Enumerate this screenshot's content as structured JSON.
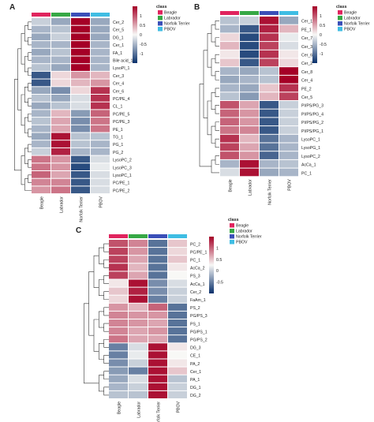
{
  "chart_data": [
    {
      "type": "heatmap",
      "panel_label": "A",
      "columns": [
        "Beagle",
        "Labrador",
        "Norfolk Terrier",
        "PBOV"
      ],
      "class_title": "class",
      "legend": [
        "Beagle",
        "Labrador",
        "Norfolk Terrier",
        "PBOV"
      ],
      "class_colors": [
        "#e0245e",
        "#36a845",
        "#3a4fb8",
        "#3fbde3"
      ],
      "scale_ticks": [
        "1",
        "0.5",
        "0",
        "-0.5",
        "-1"
      ],
      "scale_range": [
        -1.5,
        1.5
      ],
      "rows": [
        "Cer_2",
        "Cer_5",
        "DG_1",
        "Cer_1",
        "FA_1",
        "Bile acid_1",
        "LysoPI_1",
        "Cer_3",
        "Cer_4",
        "Cer_6",
        "PC/PE_4",
        "CL_1",
        "PC/PE_5",
        "PC/PE_3",
        "PE_1",
        "TG_1",
        "PG_1",
        "PG_2",
        "LysoPC_2",
        "LysoPC_3",
        "LysoPC_1",
        "PC/PE_1",
        "PC/PE_2"
      ],
      "values": [
        [
          -0.3,
          -0.6,
          1.5,
          -0.6
        ],
        [
          -0.5,
          -0.4,
          1.5,
          -0.6
        ],
        [
          -0.6,
          -0.3,
          1.5,
          -0.6
        ],
        [
          -0.5,
          -0.5,
          1.5,
          -0.5
        ],
        [
          -0.6,
          -0.4,
          1.5,
          -0.5
        ],
        [
          -0.5,
          -0.5,
          1.5,
          -0.5
        ],
        [
          -0.4,
          -0.6,
          1.5,
          -0.5
        ],
        [
          -1.2,
          0.2,
          0.6,
          0.4
        ],
        [
          -1.2,
          0.2,
          0.4,
          0.6
        ],
        [
          -0.6,
          -0.8,
          0.2,
          1.2
        ],
        [
          -0.4,
          -0.6,
          -0.2,
          1.2
        ],
        [
          -0.6,
          -0.4,
          -0.2,
          1.2
        ],
        [
          -0.5,
          0.4,
          -0.7,
          0.9
        ],
        [
          -0.4,
          0.5,
          -0.8,
          0.8
        ],
        [
          -0.5,
          0.5,
          -0.8,
          0.8
        ],
        [
          -0.6,
          1.4,
          -0.4,
          -0.4
        ],
        [
          -0.5,
          1.4,
          -0.4,
          -0.5
        ],
        [
          -0.3,
          1.3,
          -0.5,
          -0.5
        ],
        [
          0.8,
          0.6,
          -1.2,
          -0.2
        ],
        [
          0.8,
          0.6,
          -1.3,
          -0.1
        ],
        [
          0.9,
          0.5,
          -1.2,
          -0.2
        ],
        [
          0.7,
          0.7,
          -1.2,
          -0.2
        ],
        [
          0.6,
          0.8,
          -1.2,
          -0.2
        ]
      ]
    },
    {
      "type": "heatmap",
      "panel_label": "B",
      "columns": [
        "Beagle",
        "Labrador",
        "Norfolk Terrier",
        "PBOV"
      ],
      "class_title": "class",
      "legend": [
        "Beagle",
        "Labrador",
        "Norfolk Terrier",
        "PBOV"
      ],
      "class_colors": [
        "#e0245e",
        "#36a845",
        "#3a4fb8",
        "#3fbde3"
      ],
      "scale_ticks": [
        "1",
        "0.5",
        "0",
        "-0.5",
        "-1"
      ],
      "scale_range": [
        -1.5,
        1.5
      ],
      "rows": [
        "Cer_1",
        "PE_1",
        "Cer_7",
        "Cer_3",
        "Cer_6",
        "Cer_2",
        "Cer_8",
        "Cer_4",
        "PE_2",
        "Cer_5",
        "PI/PS/PG_3",
        "PI/PS/PG_4",
        "PI/PS/PG_2",
        "PI/PS/PG_1",
        "LysoPC_1",
        "LysoPG_1",
        "LysoPC_2",
        "AcCa_1",
        "PC_1"
      ],
      "values": [
        [
          -0.4,
          -0.3,
          1.4,
          -0.6
        ],
        [
          -0.5,
          -1.2,
          1.3,
          0.4
        ],
        [
          0.2,
          -1.3,
          1.2,
          -0.1
        ],
        [
          0.4,
          -1.3,
          1.1,
          -0.2
        ],
        [
          0.1,
          -1.3,
          1.2,
          0.1
        ],
        [
          0.3,
          -1.2,
          1.1,
          0.2
        ],
        [
          -0.5,
          -0.6,
          -0.4,
          1.5
        ],
        [
          -0.6,
          -0.5,
          -0.4,
          1.5
        ],
        [
          -0.5,
          -0.6,
          0.3,
          1.2
        ],
        [
          -0.4,
          -0.7,
          0.4,
          1.1
        ],
        [
          1.0,
          0.5,
          -1.2,
          -0.3
        ],
        [
          0.9,
          0.6,
          -1.2,
          -0.3
        ],
        [
          0.9,
          0.6,
          -1.2,
          -0.3
        ],
        [
          0.8,
          0.7,
          -1.2,
          -0.3
        ],
        [
          1.2,
          0.4,
          -1.0,
          -0.5
        ],
        [
          1.1,
          0.5,
          -1.0,
          -0.5
        ],
        [
          1.0,
          0.6,
          -1.1,
          -0.5
        ],
        [
          -0.5,
          1.4,
          -0.5,
          -0.4
        ],
        [
          -0.2,
          1.4,
          -0.6,
          -0.5
        ]
      ]
    },
    {
      "type": "heatmap",
      "panel_label": "C",
      "columns": [
        "Beagle",
        "Labrador",
        "Norfolk Terrier",
        "PBOV"
      ],
      "class_title": "class",
      "legend": [
        "Beagle",
        "Labrador",
        "Norfolk Terrier",
        "PBOV"
      ],
      "class_colors": [
        "#e0245e",
        "#36a845",
        "#3a4fb8",
        "#3fbde3"
      ],
      "scale_ticks": [
        "1",
        "0.5",
        "0",
        "-0.5"
      ],
      "scale_range": [
        -1.0,
        1.5
      ],
      "rows": [
        "PC_2",
        "PC/PE_1",
        "PC_1",
        "AcCa_2",
        "PS_3",
        "AcCa_1",
        "Cer_2",
        "FaAm_1",
        "PS_2",
        "PG/PS_3",
        "PS_1",
        "PG/PS_1",
        "PG/PS_2",
        "DG_3",
        "CE_1",
        "PA_2",
        "Cer_1",
        "PA_1",
        "DG_1",
        "DG_2"
      ],
      "values": [
        [
          1.0,
          0.7,
          -1.0,
          0.3
        ],
        [
          1.1,
          0.6,
          -1.0,
          0.2
        ],
        [
          1.1,
          0.5,
          -1.0,
          0.3
        ],
        [
          1.2,
          0.4,
          -1.0,
          0.1
        ],
        [
          1.1,
          0.5,
          -1.0,
          0.0
        ],
        [
          0.1,
          1.4,
          -0.8,
          -0.2
        ],
        [
          0.3,
          1.3,
          -0.8,
          -0.3
        ],
        [
          0.2,
          1.4,
          -0.9,
          -0.3
        ],
        [
          0.6,
          0.4,
          0.9,
          -1.0
        ],
        [
          0.7,
          0.6,
          0.6,
          -1.0
        ],
        [
          0.7,
          0.6,
          0.5,
          -1.0
        ],
        [
          0.7,
          0.5,
          0.6,
          -1.0
        ],
        [
          0.8,
          0.5,
          0.5,
          -1.0
        ],
        [
          -0.9,
          -0.2,
          1.4,
          0.1
        ],
        [
          -0.9,
          -0.1,
          1.4,
          0.0
        ],
        [
          -0.8,
          -0.3,
          1.4,
          0.1
        ],
        [
          -0.7,
          -0.9,
          1.4,
          0.3
        ],
        [
          -0.6,
          -0.2,
          1.4,
          -0.4
        ],
        [
          -0.5,
          -0.3,
          1.4,
          -0.3
        ],
        [
          -0.4,
          -0.4,
          1.4,
          -0.3
        ]
      ]
    }
  ]
}
